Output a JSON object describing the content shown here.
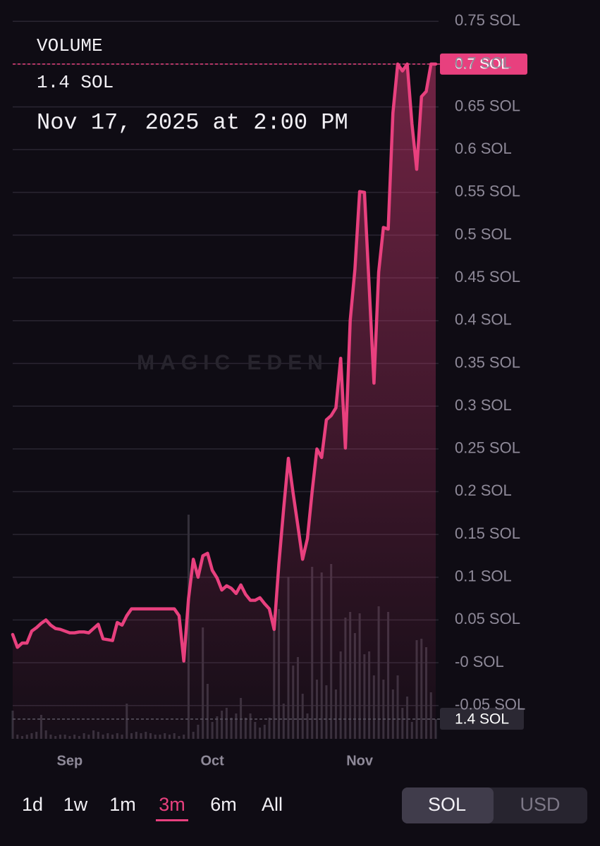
{
  "chart_data": {
    "type": "line",
    "xlim": [
      0,
      89
    ],
    "xticks": [
      {
        "value": 12,
        "label": "Sep"
      },
      {
        "value": 42,
        "label": "Oct"
      },
      {
        "value": 73,
        "label": "Nov"
      }
    ],
    "ylim": [
      -0.089,
      0.77
    ],
    "yticks": [
      {
        "value": -0.05,
        "label": "-0.05 SOL"
      },
      {
        "value": 0,
        "label": "-0 SOL"
      },
      {
        "value": 0.05,
        "label": "0.05 SOL"
      },
      {
        "value": 0.1,
        "label": "0.1 SOL"
      },
      {
        "value": 0.15,
        "label": "0.15 SOL"
      },
      {
        "value": 0.2,
        "label": "0.2 SOL"
      },
      {
        "value": 0.25,
        "label": "0.25 SOL"
      },
      {
        "value": 0.3,
        "label": "0.3 SOL"
      },
      {
        "value": 0.35,
        "label": "0.35 SOL"
      },
      {
        "value": 0.4,
        "label": "0.4 SOL"
      },
      {
        "value": 0.45,
        "label": "0.45 SOL"
      },
      {
        "value": 0.5,
        "label": "0.5 SOL"
      },
      {
        "value": 0.55,
        "label": "0.55 SOL"
      },
      {
        "value": 0.6,
        "label": "0.6 SOL"
      },
      {
        "value": 0.65,
        "label": "0.65 SOL"
      },
      {
        "value": 0.7,
        "label": "0.7 SOL"
      },
      {
        "value": 0.75,
        "label": "0.75 SOL"
      }
    ],
    "y2lim": [
      0,
      16
    ],
    "grid": true,
    "series": [
      {
        "color": "#e8407e",
        "values": [
          0.033,
          0.018,
          0.023,
          0.023,
          0.037,
          0.041,
          0.046,
          0.05,
          0.044,
          0.04,
          0.039,
          0.037,
          0.035,
          0.035,
          0.036,
          0.036,
          0.035,
          0.04,
          0.045,
          0.028,
          0.027,
          0.026,
          0.047,
          0.044,
          0.055,
          0.063,
          0.063,
          0.063,
          0.063,
          0.063,
          0.063,
          0.063,
          0.063,
          0.063,
          0.063,
          0.055,
          0.002,
          0.075,
          0.121,
          0.1,
          0.125,
          0.128,
          0.108,
          0.099,
          0.085,
          0.09,
          0.087,
          0.081,
          0.091,
          0.08,
          0.073,
          0.073,
          0.076,
          0.069,
          0.063,
          0.039,
          0.115,
          0.18,
          0.239,
          0.198,
          0.16,
          0.121,
          0.145,
          0.2,
          0.25,
          0.24,
          0.284,
          0.289,
          0.298,
          0.356,
          0.251,
          0.4,
          0.46,
          0.551,
          0.55,
          0.44,
          0.327,
          0.457,
          0.509,
          0.507,
          0.643,
          0.7,
          0.692,
          0.7,
          0.63,
          0.577,
          0.662,
          0.668,
          0.7,
          0.7
        ]
      },
      {
        "type": "bar",
        "axis": "y2",
        "color": "#34303b",
        "values": [
          2.0,
          0.3,
          0.2,
          0.3,
          0.4,
          0.5,
          1.7,
          0.6,
          0.3,
          0.2,
          0.3,
          0.3,
          0.2,
          0.3,
          0.2,
          0.4,
          0.3,
          0.6,
          0.5,
          0.3,
          0.4,
          0.3,
          0.4,
          0.3,
          2.5,
          0.4,
          0.5,
          0.4,
          0.5,
          0.4,
          0.3,
          0.3,
          0.4,
          0.3,
          0.4,
          0.2,
          0.3,
          15.9,
          0.5,
          1.0,
          7.9,
          3.9,
          1.2,
          1.6,
          2.0,
          2.2,
          1.5,
          1.8,
          2.9,
          1.5,
          1.8,
          1.2,
          0.8,
          1.0,
          1.5,
          8.8,
          9.2,
          2.5,
          11.5,
          5.2,
          5.8,
          3.2,
          1.8,
          12.2,
          4.2,
          11.8,
          3.8,
          12.4,
          3.5,
          6.2,
          8.6,
          9.0,
          7.5,
          8.9,
          6.0,
          6.2,
          4.5,
          9.4,
          4.2,
          9.0,
          3.5,
          4.5,
          2.2,
          3.0,
          1.2,
          7.0,
          7.1,
          6.5,
          3.3,
          1.4
        ]
      }
    ]
  },
  "ui": {
    "metric": "VOLUME",
    "volume": "1.4 SOL",
    "date": "Nov 17, 2025 at 2:00 PM",
    "hover_price": "0.7 SOL",
    "watermark": "MAGIC EDEN",
    "ranges": [
      "1d",
      "1w",
      "1m",
      "3m",
      "6m",
      "All"
    ],
    "selected_range": 3,
    "currencies": [
      "SOL",
      "USD"
    ]
  }
}
